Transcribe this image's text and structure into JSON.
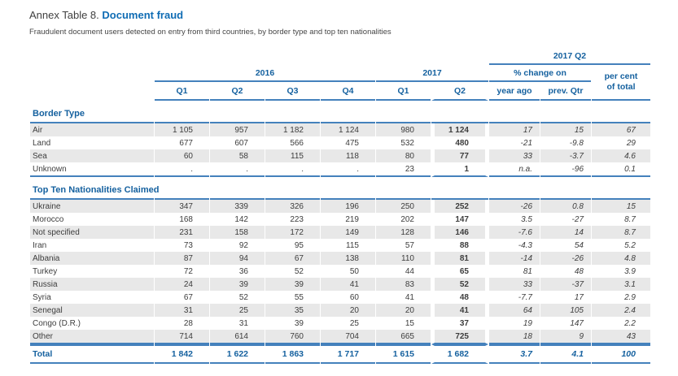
{
  "title": {
    "prefix": "Annex Table 8.",
    "highlight": "Document fraud"
  },
  "subtitle": "Fraudulent document users detected on entry from third countries, by border type and top ten nationalities",
  "colors": {
    "accent_blue": "#15619f",
    "line_blue": "#4481bc",
    "row_shade": "#e8e8e8",
    "body_text": "#3d3d3d"
  },
  "table": {
    "header": {
      "q2_2017": "2017 Q2",
      "y2016": "2016",
      "y2017": "2017",
      "pct_change": "% change on",
      "percent_line1": "per cent",
      "percent_line2": "of total",
      "columns": [
        "Q1",
        "Q2",
        "Q3",
        "Q4",
        "Q1",
        "Q2",
        "year ago",
        "prev. Qtr"
      ]
    },
    "sections": [
      {
        "title": "Border Type",
        "rows": [
          {
            "label": "Air",
            "values": [
              "1 105",
              "957",
              "1 182",
              "1 124",
              "980",
              "1 124",
              "17",
              "15",
              "67"
            ]
          },
          {
            "label": "Land",
            "values": [
              "677",
              "607",
              "566",
              "475",
              "532",
              "480",
              "-21",
              "-9.8",
              "29"
            ]
          },
          {
            "label": "Sea",
            "values": [
              "60",
              "58",
              "115",
              "118",
              "80",
              "77",
              "33",
              "-3.7",
              "4.6"
            ]
          },
          {
            "label": "Unknown",
            "values": [
              ".",
              ".",
              ".",
              ".",
              "23",
              "1",
              "n.a.",
              "-96",
              "0.1"
            ]
          }
        ]
      },
      {
        "title": "Top Ten Nationalities Claimed",
        "rows": [
          {
            "label": "Ukraine",
            "values": [
              "347",
              "339",
              "326",
              "196",
              "250",
              "252",
              "-26",
              "0.8",
              "15"
            ]
          },
          {
            "label": "Morocco",
            "values": [
              "168",
              "142",
              "223",
              "219",
              "202",
              "147",
              "3.5",
              "-27",
              "8.7"
            ]
          },
          {
            "label": "Not specified",
            "values": [
              "231",
              "158",
              "172",
              "149",
              "128",
              "146",
              "-7.6",
              "14",
              "8.7"
            ]
          },
          {
            "label": "Iran",
            "values": [
              "73",
              "92",
              "95",
              "115",
              "57",
              "88",
              "-4.3",
              "54",
              "5.2"
            ]
          },
          {
            "label": "Albania",
            "values": [
              "87",
              "94",
              "67",
              "138",
              "110",
              "81",
              "-14",
              "-26",
              "4.8"
            ]
          },
          {
            "label": "Turkey",
            "values": [
              "72",
              "36",
              "52",
              "50",
              "44",
              "65",
              "81",
              "48",
              "3.9"
            ]
          },
          {
            "label": "Russia",
            "values": [
              "24",
              "39",
              "39",
              "41",
              "83",
              "52",
              "33",
              "-37",
              "3.1"
            ]
          },
          {
            "label": "Syria",
            "values": [
              "67",
              "52",
              "55",
              "60",
              "41",
              "48",
              "-7.7",
              "17",
              "2.9"
            ]
          },
          {
            "label": "Senegal",
            "values": [
              "31",
              "25",
              "35",
              "20",
              "20",
              "41",
              "64",
              "105",
              "2.4"
            ]
          },
          {
            "label": "Congo (D.R.)",
            "values": [
              "28",
              "31",
              "39",
              "25",
              "15",
              "37",
              "19",
              "147",
              "2.2"
            ]
          },
          {
            "label": "Other",
            "values": [
              "714",
              "614",
              "760",
              "704",
              "665",
              "725",
              "18",
              "9",
              "43"
            ]
          }
        ]
      }
    ],
    "total": {
      "label": "Total",
      "values": [
        "1 842",
        "1 622",
        "1 863",
        "1 717",
        "1 615",
        "1 682",
        "3.7",
        "4.1",
        "100"
      ]
    }
  }
}
